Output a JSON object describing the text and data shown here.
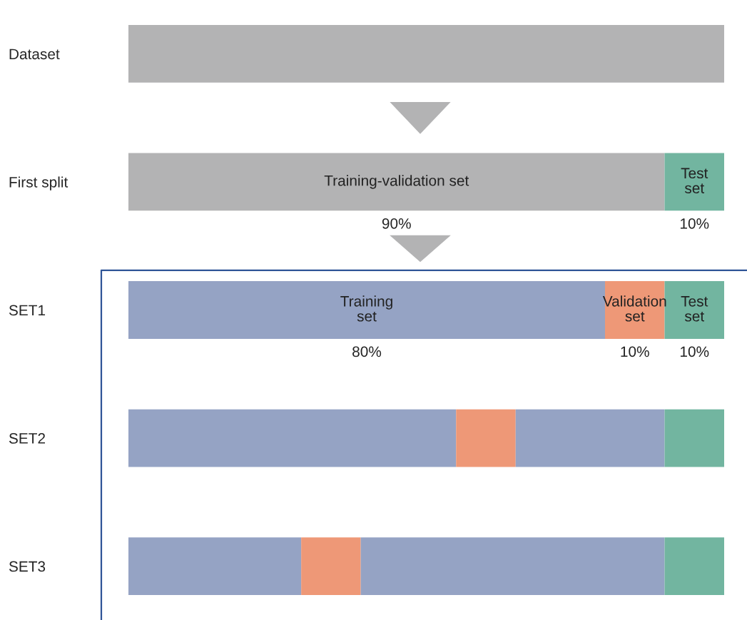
{
  "chart_data": {
    "type": "bar",
    "orientation": "horizontal",
    "stacked": true,
    "categories": [
      "Dataset",
      "First split",
      "SET1",
      "SET2",
      "SET3"
    ],
    "tick_labels": "y",
    "grid": false,
    "series": [
      {
        "color": "#b3b3b4",
        "values": [
          100,
          null,
          null,
          null,
          null
        ]
      },
      {
        "name": "Training-validation set",
        "color": "#b3b3b4",
        "values": [
          null,
          90,
          null,
          null,
          null
        ],
        "value_labels": [
          null,
          "90%",
          null,
          null,
          null
        ]
      },
      {
        "name": "Training set",
        "color": "#95a3c4",
        "values": [
          null,
          null,
          80,
          55,
          29
        ],
        "value_labels": [
          null,
          null,
          "80%",
          null,
          null
        ]
      },
      {
        "name": "Validation set",
        "color": "#ee9877",
        "values": [
          null,
          null,
          10,
          10,
          10
        ],
        "value_labels": [
          null,
          null,
          "10%",
          null,
          null
        ]
      },
      {
        "color": "#95a3c4",
        "values": [
          null,
          null,
          null,
          25,
          51
        ]
      },
      {
        "name": "Test set",
        "color": "#72b5a0",
        "values": [
          null,
          10,
          10,
          10,
          10
        ],
        "value_labels": [
          null,
          "10%",
          "10%",
          null,
          null
        ]
      }
    ]
  }
}
